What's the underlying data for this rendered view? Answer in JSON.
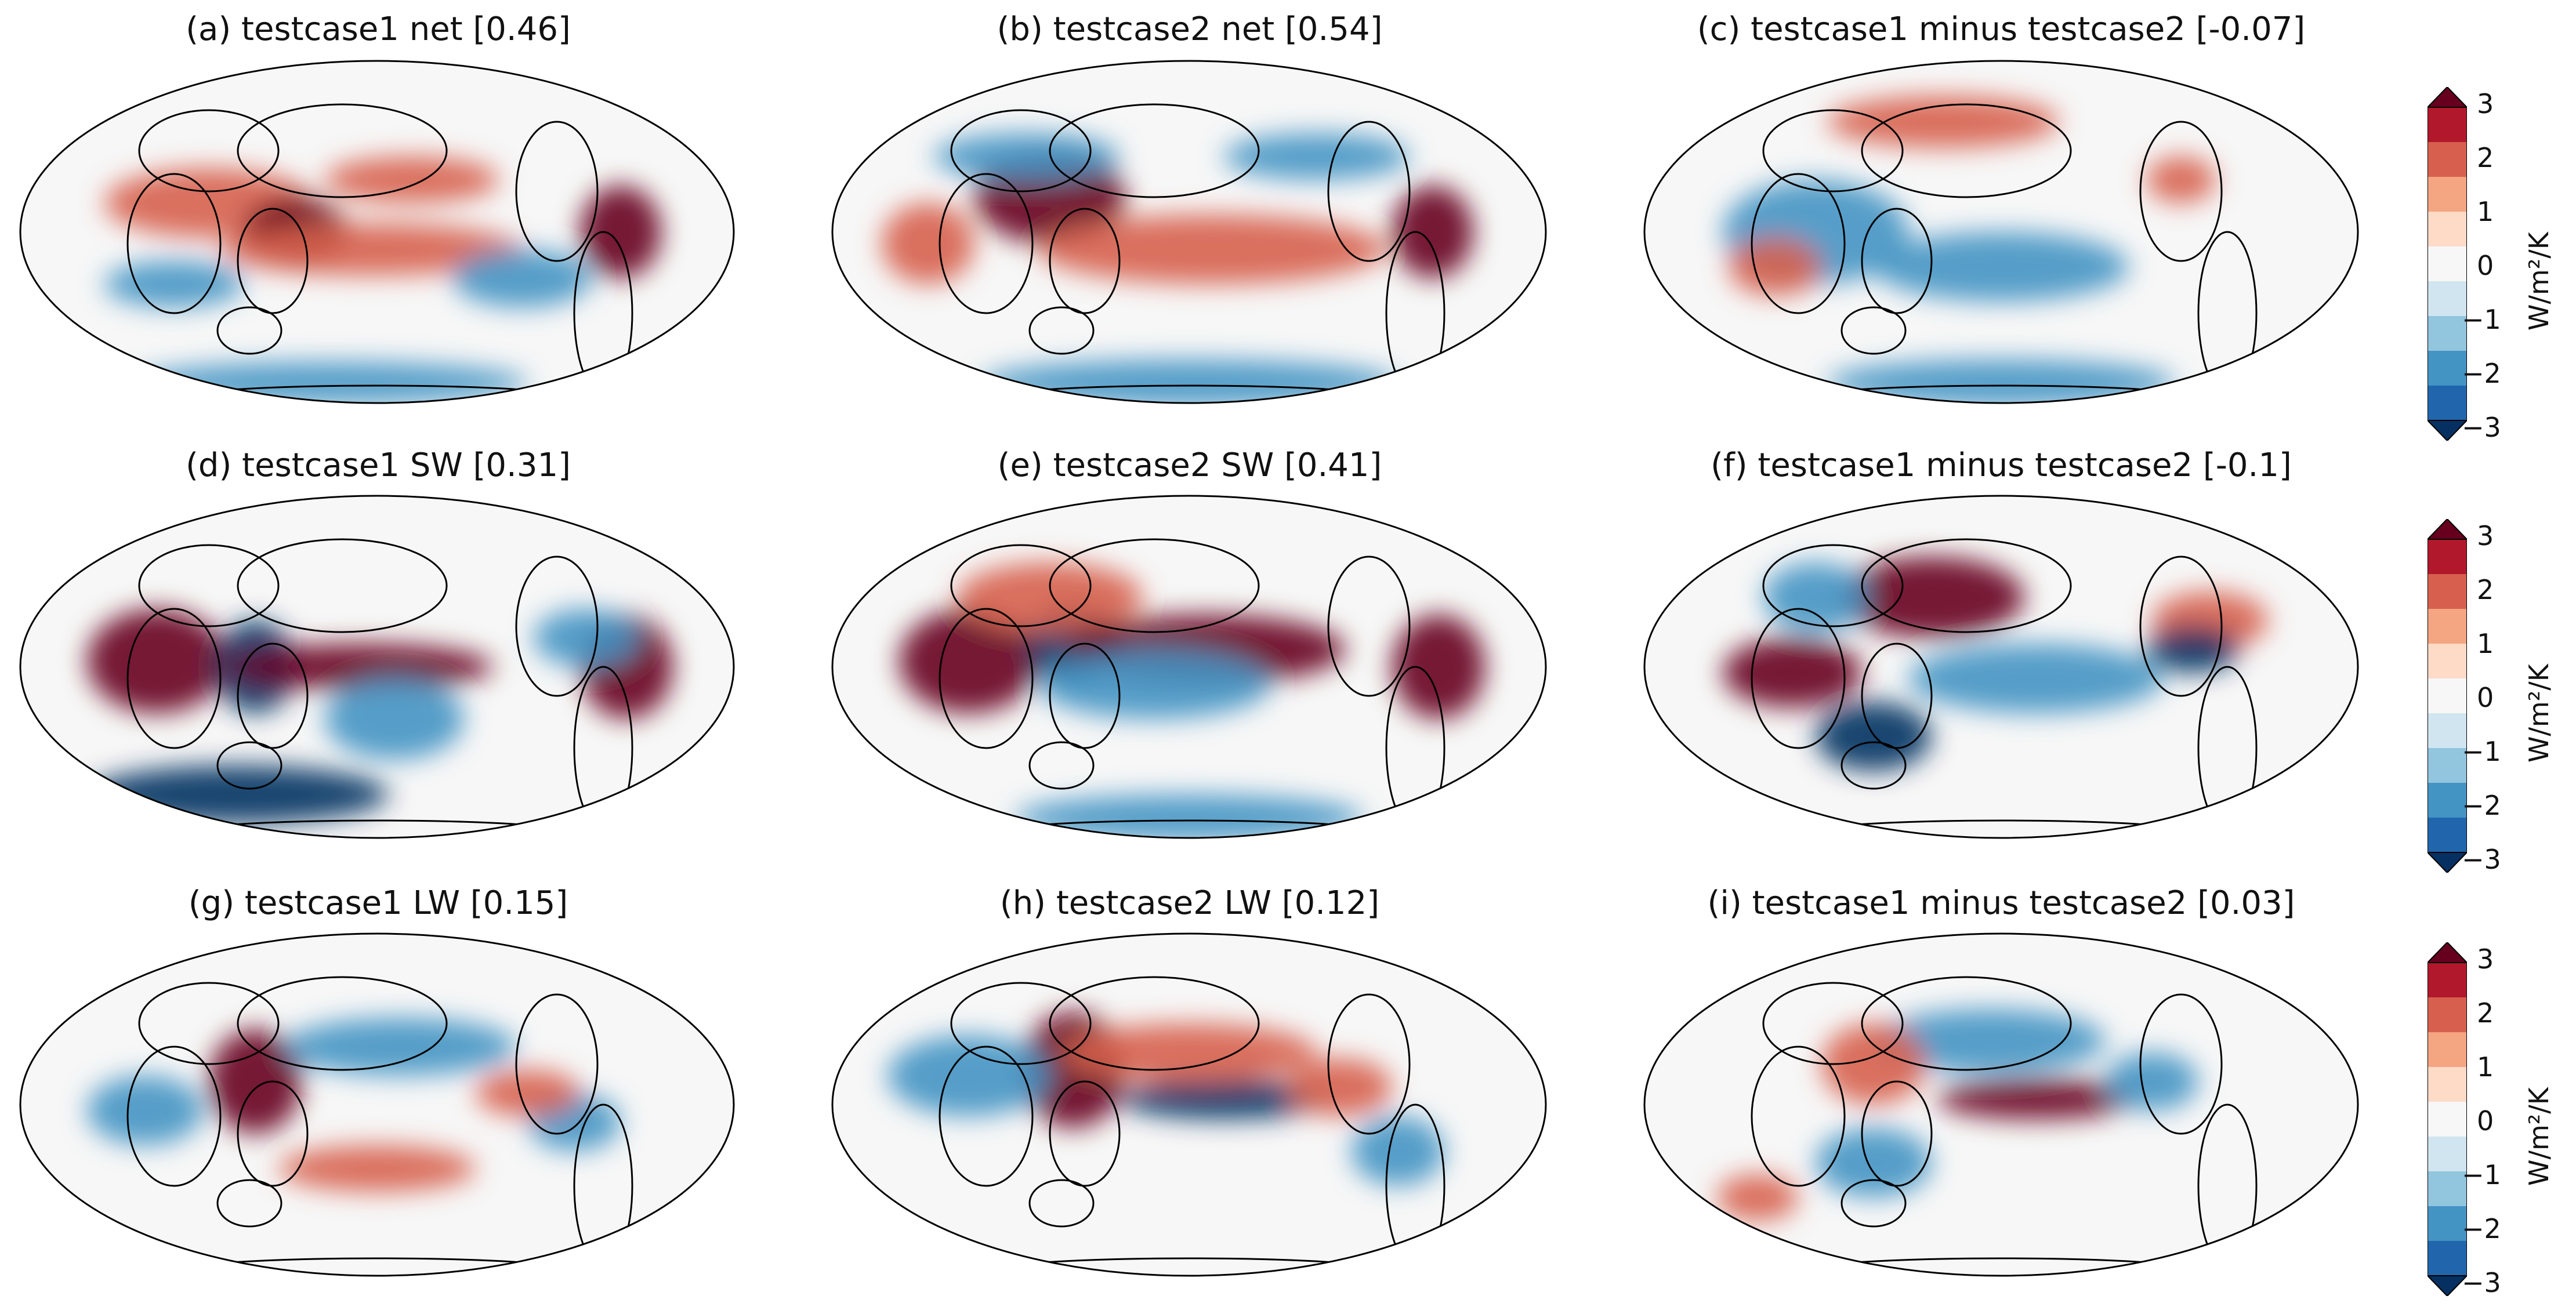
{
  "panels": [
    {
      "title": "(a) testcase1 net [0.46]"
    },
    {
      "title": "(b) testcase2 net [0.54]"
    },
    {
      "title": "(c) testcase1 minus testcase2 [-0.07]"
    },
    {
      "title": "(d) testcase1 SW [0.31]"
    },
    {
      "title": "(e) testcase2 SW [0.41]"
    },
    {
      "title": "(f) testcase1 minus testcase2 [-0.1]"
    },
    {
      "title": "(g) testcase1 LW [0.15]"
    },
    {
      "title": "(h) testcase2 LW [0.12]"
    },
    {
      "title": "(i) testcase1 minus testcase2 [0.03]"
    }
  ],
  "colorbar": {
    "ticks": [
      "3",
      "2",
      "1",
      "0",
      "−1",
      "−2",
      "−3"
    ],
    "units": "W/m²/K",
    "colors": [
      "#053061",
      "#2166ac",
      "#4393c3",
      "#92c5de",
      "#d1e5f0",
      "#f7f7f7",
      "#fddbc7",
      "#f4a582",
      "#d6604d",
      "#b2182b",
      "#67001f"
    ]
  },
  "colors": {
    "land_outline": "#000000",
    "strong_positive": "#67001f",
    "positive": "#d6604d",
    "neutral": "#f7f7f7",
    "negative": "#4393c3",
    "strong_negative": "#053061"
  }
}
